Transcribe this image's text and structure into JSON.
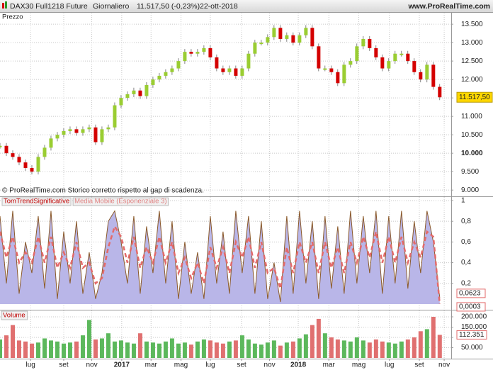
{
  "header": {
    "instrument": "DAX30 Full1218 Future",
    "period": "Giornaliero",
    "quote": "11.517,50 (-0,23%)",
    "date": "22-ott-2018",
    "site": "www.ProRealTime.com"
  },
  "chart_data": [
    {
      "type": "line",
      "title": "Prezzo",
      "annotation": "© ProRealTime.com  Storico corretto rispetto al gap di scadenza.",
      "up_color": "#9acd32",
      "down_color": "#d40000",
      "values": [
        10200,
        10000,
        9900,
        9750,
        9600,
        9500,
        9900,
        10150,
        10400,
        10500,
        10600,
        10650,
        10550,
        10650,
        10700,
        10300,
        10650,
        10700,
        11300,
        11500,
        11600,
        11700,
        11550,
        11850,
        12000,
        12100,
        12200,
        12300,
        12500,
        12750,
        12700,
        12750,
        12850,
        12600,
        12300,
        12200,
        12300,
        12100,
        12300,
        12700,
        13000,
        13000,
        13150,
        13400,
        13100,
        13200,
        13000,
        13200,
        13400,
        12900,
        12300,
        12300,
        12200,
        11900,
        12400,
        12500,
        12900,
        13100,
        12850,
        12600,
        12300,
        12500,
        12700,
        12700,
        12500,
        12200,
        12000,
        12400,
        11800,
        11517.5
      ],
      "value_labels": [
        null,
        null,
        null,
        null,
        null,
        null,
        null,
        null,
        null,
        null,
        null,
        null,
        null,
        null,
        null,
        null,
        null,
        null,
        null,
        null,
        null,
        null,
        null,
        null,
        null,
        null,
        null,
        null,
        null,
        null,
        null,
        null,
        null,
        null,
        null,
        null,
        null,
        null,
        null,
        null,
        null,
        null,
        null,
        null,
        null,
        null,
        null,
        null,
        null,
        null,
        null,
        null,
        null,
        null,
        null,
        null,
        null,
        null,
        null,
        null,
        null,
        null,
        null,
        null,
        null,
        null,
        null,
        null,
        null,
        "11.517,50"
      ],
      "xlim": [
        0,
        70.8
      ],
      "ylim": [
        8830,
        13810
      ],
      "yticks": [
        {
          "value": 9000,
          "label": "9.000"
        },
        {
          "value": 9500,
          "label": "9.500"
        },
        {
          "value": 10000,
          "label": "10.000"
        },
        {
          "value": 10500,
          "label": "10.500"
        },
        {
          "value": 11000,
          "label": "11.000"
        },
        {
          "value": 11500,
          "label": "11.500"
        },
        {
          "value": 12000,
          "label": "12.000"
        },
        {
          "value": 12500,
          "label": "12.500"
        },
        {
          "value": 13000,
          "label": "13.000"
        },
        {
          "value": 13500,
          "label": "13.500"
        }
      ],
      "grid": true
    },
    {
      "type": "area",
      "series": [
        {
          "name": "TomTrendSignificative",
          "color": "#8b5a2b",
          "fill": "#b9b6e8",
          "values": [
            0.85,
            0.2,
            0.9,
            0.1,
            0.6,
            0.3,
            0.85,
            0.15,
            0.9,
            0.05,
            0.7,
            0.2,
            0.8,
            0.1,
            0.5,
            0.05,
            0.3,
            0.8,
            0.9,
            0.6,
            0.2,
            0.85,
            0.1,
            0.75,
            0.3,
            0.9,
            0.2,
            0.8,
            0.05,
            0.6,
            0.1,
            0.5,
            0.05,
            0.85,
            0.2,
            0.7,
            0.1,
            0.9,
            0.3,
            0.85,
            0.1,
            0.8,
            0.05,
            0.4,
            0.02,
            0.85,
            0.1,
            0.9,
            0.2,
            0.8,
            0.05,
            0.85,
            0.15,
            0.75,
            0.1,
            0.9,
            0.2,
            0.85,
            0.3,
            0.9,
            0.1,
            0.85,
            0.2,
            0.9,
            0.15,
            0.8,
            0.3,
            0.9,
            0.6,
            0.0623
          ],
          "last_label": "0,0623"
        },
        {
          "name": "Media Mobile (Esponenziale 3)",
          "color": "#e36a6a",
          "values": [
            0.7,
            0.45,
            0.65,
            0.4,
            0.5,
            0.4,
            0.65,
            0.4,
            0.65,
            0.35,
            0.5,
            0.35,
            0.6,
            0.35,
            0.4,
            0.2,
            0.25,
            0.55,
            0.75,
            0.65,
            0.4,
            0.65,
            0.35,
            0.55,
            0.4,
            0.65,
            0.4,
            0.6,
            0.3,
            0.45,
            0.25,
            0.4,
            0.2,
            0.55,
            0.35,
            0.55,
            0.3,
            0.6,
            0.45,
            0.65,
            0.35,
            0.6,
            0.3,
            0.35,
            0.15,
            0.55,
            0.3,
            0.6,
            0.4,
            0.6,
            0.3,
            0.6,
            0.35,
            0.55,
            0.3,
            0.6,
            0.4,
            0.65,
            0.45,
            0.7,
            0.4,
            0.65,
            0.4,
            0.65,
            0.4,
            0.6,
            0.45,
            0.7,
            0.65,
            0.0003
          ],
          "last_label": "0,0003"
        }
      ],
      "xlim": [
        0,
        70.8
      ],
      "ylim": [
        -0.055,
        1.034
      ],
      "yticks": [
        {
          "value": 0.2,
          "label": "0,2"
        },
        {
          "value": 0.4,
          "label": "0,4"
        },
        {
          "value": 0.6,
          "label": "0,6"
        },
        {
          "value": 0.8,
          "label": "0,8"
        },
        1
      ],
      "grid": true
    },
    {
      "type": "bar",
      "title": "Volume",
      "up_color": "#5cb85c",
      "down_color": "#e07070",
      "values": [
        90000,
        110000,
        160000,
        85000,
        80000,
        70000,
        75000,
        95000,
        85000,
        80000,
        70000,
        75000,
        80000,
        110000,
        185000,
        90000,
        95000,
        120000,
        80000,
        85000,
        75000,
        70000,
        120000,
        80000,
        75000,
        70000,
        80000,
        95000,
        70000,
        75000,
        65000,
        80000,
        90000,
        85000,
        75000,
        70000,
        80000,
        85000,
        110000,
        90000,
        70000,
        65000,
        75000,
        85000,
        60000,
        75000,
        80000,
        95000,
        115000,
        160000,
        190000,
        120000,
        100000,
        90000,
        85000,
        80000,
        100000,
        85000,
        75000,
        90000,
        80000,
        75000,
        70000,
        80000,
        90000,
        100000,
        130000,
        140000,
        200000,
        112351
      ],
      "value_labels": [
        null,
        null,
        null,
        null,
        null,
        null,
        null,
        null,
        null,
        null,
        null,
        null,
        null,
        null,
        null,
        null,
        null,
        null,
        null,
        null,
        null,
        null,
        null,
        null,
        null,
        null,
        null,
        null,
        null,
        null,
        null,
        null,
        null,
        null,
        null,
        null,
        null,
        null,
        null,
        null,
        null,
        null,
        null,
        null,
        null,
        null,
        null,
        null,
        null,
        null,
        null,
        null,
        null,
        null,
        null,
        null,
        null,
        null,
        null,
        null,
        null,
        null,
        null,
        null,
        null,
        null,
        null,
        null,
        null,
        "112.351"
      ],
      "xlim": [
        0,
        70.8
      ],
      "ylim": [
        -3400,
        231000
      ],
      "yticks": [
        {
          "value": 50000,
          "label": "50.000"
        },
        {
          "value": 100000,
          "label": "100.000"
        },
        {
          "value": 150000,
          "label": "150.000"
        },
        {
          "value": 200000,
          "label": "200.000"
        }
      ],
      "xticks": [
        {
          "value": 4.8,
          "label": "lug"
        },
        {
          "value": 10,
          "label": "set"
        },
        {
          "value": 14.4,
          "label": "nov"
        },
        {
          "value": 19.1,
          "label": "2017"
        },
        {
          "value": 23.7,
          "label": "mar"
        },
        {
          "value": 28.4,
          "label": "mag"
        },
        {
          "value": 33,
          "label": "lug"
        },
        {
          "value": 37.9,
          "label": "set"
        },
        {
          "value": 42.3,
          "label": "nov"
        },
        {
          "value": 46.8,
          "label": "2018"
        },
        {
          "value": 51.6,
          "label": "mar"
        },
        {
          "value": 56.3,
          "label": "mag"
        },
        {
          "value": 61.1,
          "label": "lug"
        },
        {
          "value": 65.8,
          "label": "set"
        },
        {
          "value": 69.7,
          "label": "nov"
        }
      ],
      "grid": true
    }
  ]
}
